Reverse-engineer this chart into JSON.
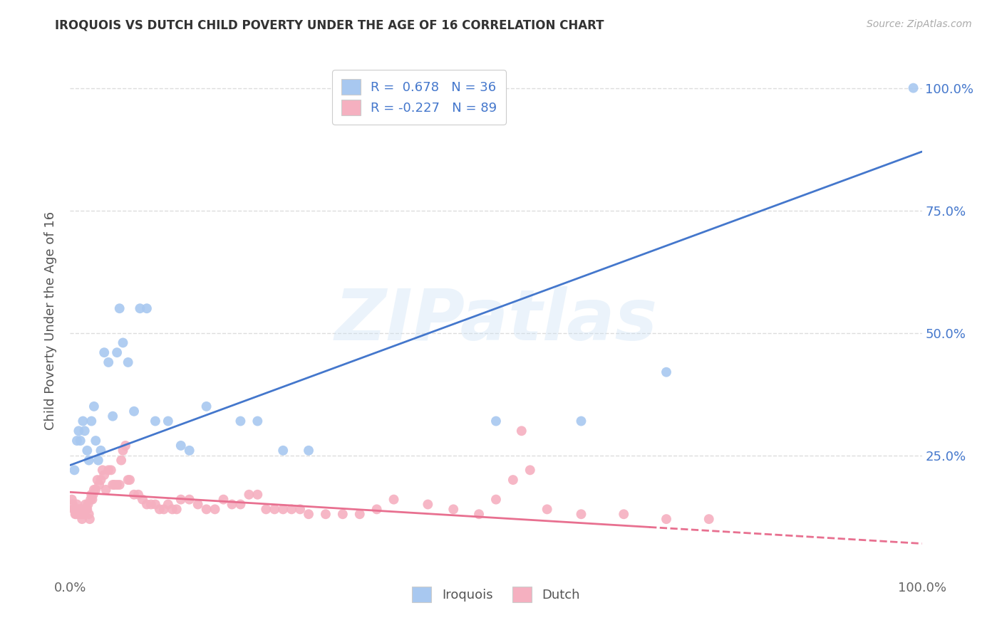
{
  "title": "IROQUOIS VS DUTCH CHILD POVERTY UNDER THE AGE OF 16 CORRELATION CHART",
  "source": "Source: ZipAtlas.com",
  "ylabel": "Child Poverty Under the Age of 16",
  "xlim": [
    0,
    1
  ],
  "ylim": [
    0,
    1.05
  ],
  "x_ticks": [
    0,
    1
  ],
  "x_tick_labels": [
    "0.0%",
    "100.0%"
  ],
  "y_ticks": [
    0.25,
    0.5,
    0.75,
    1.0
  ],
  "y_tick_labels": [
    "25.0%",
    "50.0%",
    "75.0%",
    "100.0%"
  ],
  "iroquois_color": "#a8c8f0",
  "dutch_color": "#f5b0c0",
  "iroquois_line_color": "#4477cc",
  "dutch_line_color": "#e87090",
  "iroquois_R": 0.678,
  "iroquois_N": 36,
  "dutch_R": -0.227,
  "dutch_N": 89,
  "legend_label_iroquois": "Iroquois",
  "legend_label_dutch": "Dutch",
  "watermark": "ZIPatlas",
  "background_color": "#ffffff",
  "grid_color": "#dddddd",
  "iroquois_x": [
    0.005,
    0.008,
    0.01,
    0.012,
    0.015,
    0.017,
    0.02,
    0.022,
    0.025,
    0.028,
    0.03,
    0.033,
    0.036,
    0.04,
    0.045,
    0.05,
    0.055,
    0.058,
    0.062,
    0.068,
    0.075,
    0.082,
    0.09,
    0.1,
    0.115,
    0.13,
    0.14,
    0.16,
    0.2,
    0.22,
    0.25,
    0.28,
    0.5,
    0.6,
    0.7,
    0.99
  ],
  "iroquois_y": [
    0.22,
    0.28,
    0.3,
    0.28,
    0.32,
    0.3,
    0.26,
    0.24,
    0.32,
    0.35,
    0.28,
    0.24,
    0.26,
    0.46,
    0.44,
    0.33,
    0.46,
    0.55,
    0.48,
    0.44,
    0.34,
    0.55,
    0.55,
    0.32,
    0.32,
    0.27,
    0.26,
    0.35,
    0.32,
    0.32,
    0.26,
    0.26,
    0.32,
    0.32,
    0.42,
    1.0
  ],
  "dutch_x": [
    0.002,
    0.003,
    0.004,
    0.005,
    0.006,
    0.007,
    0.008,
    0.009,
    0.01,
    0.011,
    0.012,
    0.013,
    0.014,
    0.015,
    0.016,
    0.017,
    0.018,
    0.019,
    0.02,
    0.021,
    0.022,
    0.023,
    0.024,
    0.025,
    0.026,
    0.027,
    0.028,
    0.03,
    0.032,
    0.034,
    0.036,
    0.038,
    0.04,
    0.042,
    0.045,
    0.048,
    0.05,
    0.052,
    0.055,
    0.058,
    0.06,
    0.062,
    0.065,
    0.068,
    0.07,
    0.075,
    0.08,
    0.085,
    0.09,
    0.095,
    0.1,
    0.105,
    0.11,
    0.115,
    0.12,
    0.125,
    0.13,
    0.14,
    0.15,
    0.16,
    0.17,
    0.18,
    0.19,
    0.2,
    0.21,
    0.22,
    0.23,
    0.24,
    0.25,
    0.26,
    0.27,
    0.28,
    0.3,
    0.32,
    0.34,
    0.36,
    0.38,
    0.42,
    0.45,
    0.48,
    0.5,
    0.52,
    0.54,
    0.56,
    0.6,
    0.65,
    0.7,
    0.75,
    0.53
  ],
  "dutch_y": [
    0.16,
    0.15,
    0.14,
    0.14,
    0.13,
    0.13,
    0.15,
    0.14,
    0.13,
    0.14,
    0.13,
    0.14,
    0.12,
    0.13,
    0.14,
    0.13,
    0.15,
    0.14,
    0.14,
    0.15,
    0.13,
    0.12,
    0.16,
    0.17,
    0.16,
    0.17,
    0.18,
    0.18,
    0.2,
    0.19,
    0.2,
    0.22,
    0.21,
    0.18,
    0.22,
    0.22,
    0.19,
    0.19,
    0.19,
    0.19,
    0.24,
    0.26,
    0.27,
    0.2,
    0.2,
    0.17,
    0.17,
    0.16,
    0.15,
    0.15,
    0.15,
    0.14,
    0.14,
    0.15,
    0.14,
    0.14,
    0.16,
    0.16,
    0.15,
    0.14,
    0.14,
    0.16,
    0.15,
    0.15,
    0.17,
    0.17,
    0.14,
    0.14,
    0.14,
    0.14,
    0.14,
    0.13,
    0.13,
    0.13,
    0.13,
    0.14,
    0.16,
    0.15,
    0.14,
    0.13,
    0.16,
    0.2,
    0.22,
    0.14,
    0.13,
    0.13,
    0.12,
    0.12,
    0.3
  ],
  "iroquois_line_x0": 0.0,
  "iroquois_line_y0": 0.23,
  "iroquois_line_x1": 1.0,
  "iroquois_line_y1": 0.87,
  "dutch_line_x0": 0.0,
  "dutch_line_y0": 0.175,
  "dutch_line_x1": 1.0,
  "dutch_line_y1": 0.07
}
